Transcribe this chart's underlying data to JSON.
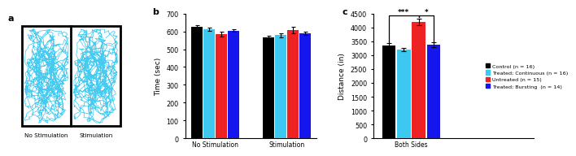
{
  "panel_a_label": "a",
  "panel_b_label": "b",
  "panel_c_label": "c",
  "colors": {
    "black": "#000000",
    "cyan": "#3CC8F0",
    "red": "#EE2222",
    "blue": "#1515EE",
    "track_bg": "#FFFFFF",
    "track_border": "#000000",
    "trajectory": "#3CC8F0"
  },
  "panel_b": {
    "groups": [
      "No Stimulation",
      "Stimulation"
    ],
    "bar_values": [
      [
        625,
        610,
        585,
        605
      ],
      [
        565,
        578,
        608,
        590
      ]
    ],
    "bar_errors": [
      [
        10,
        9,
        14,
        7
      ],
      [
        9,
        10,
        17,
        9
      ]
    ],
    "ylabel": "Time (sec)",
    "ylim": [
      0,
      700
    ],
    "yticks": [
      0,
      100,
      200,
      300,
      400,
      500,
      600,
      700
    ]
  },
  "panel_c": {
    "group": "Both Sides",
    "bar_values": [
      3340,
      3200,
      4200,
      3380
    ],
    "bar_errors": [
      85,
      65,
      130,
      85
    ],
    "ylabel": "Distance (in)",
    "ylim": [
      0,
      4500
    ],
    "yticks": [
      0,
      500,
      1000,
      1500,
      2000,
      2500,
      3000,
      3500,
      4000,
      4500
    ]
  },
  "legend": [
    {
      "label": "Control (n = 16)",
      "color": "#000000"
    },
    {
      "label": "Treated; Continuous (n = 16)",
      "color": "#3CC8F0"
    },
    {
      "label": "Untreated (n = 15)",
      "color": "#EE2222"
    },
    {
      "label": "Treated; Bursting  (n = 14)",
      "color": "#1515EE"
    }
  ]
}
